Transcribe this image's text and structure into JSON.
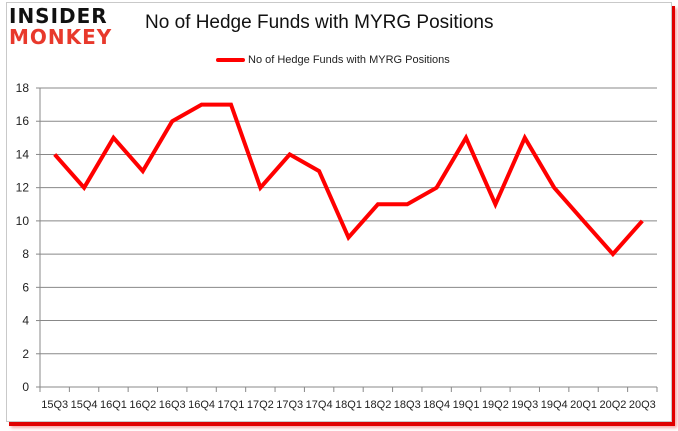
{
  "logo": {
    "line1": "INSIDER",
    "line2": "MONKEY"
  },
  "colors": {
    "series": "#ff0000",
    "grid": "#888888",
    "logo_red": "#e8392c",
    "frame_shadow": "#e00000"
  },
  "chart_data": {
    "type": "line",
    "title": "No of Hedge Funds with MYRG Positions",
    "xlabel": "",
    "ylabel": "",
    "ylim": [
      0,
      18
    ],
    "yticks": [
      0,
      2,
      4,
      6,
      8,
      10,
      12,
      14,
      16,
      18
    ],
    "grid": true,
    "legend_position": "top",
    "categories": [
      "15Q3",
      "15Q4",
      "16Q1",
      "16Q2",
      "16Q3",
      "16Q4",
      "17Q1",
      "17Q2",
      "17Q3",
      "17Q4",
      "18Q1",
      "18Q2",
      "18Q3",
      "18Q4",
      "19Q1",
      "19Q2",
      "19Q3",
      "19Q4",
      "20Q1",
      "20Q2",
      "20Q3"
    ],
    "series": [
      {
        "name": "No of Hedge Funds with MYRG Positions",
        "values": [
          14,
          12,
          15,
          13,
          16,
          17,
          17,
          12,
          14,
          13,
          9,
          11,
          11,
          12,
          15,
          11,
          15,
          12,
          10,
          8,
          10
        ]
      }
    ]
  }
}
